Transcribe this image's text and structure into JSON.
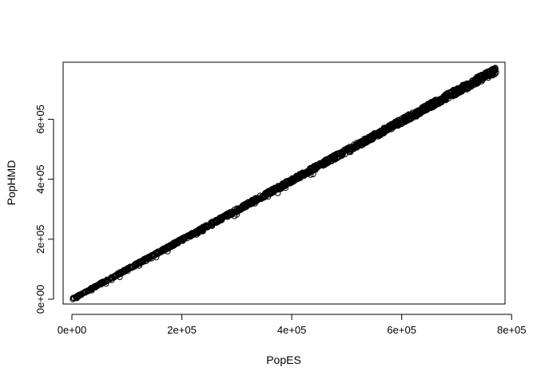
{
  "chart_data": {
    "type": "scatter",
    "title": "",
    "xlabel": "PopES",
    "ylabel": "PopHMD",
    "xlim": [
      -16000,
      788000
    ],
    "ylim": [
      -16000,
      790000
    ],
    "x_ticks": [
      0,
      200000,
      400000,
      600000,
      800000
    ],
    "y_ticks": [
      0,
      200000,
      400000,
      600000
    ],
    "x_tick_labels": [
      "0e+00",
      "2e+05",
      "4e+05",
      "6e+05",
      "8e+05"
    ],
    "y_tick_labels": [
      "0e+00",
      "2e+05",
      "4e+05",
      "6e+05"
    ],
    "marker": "open-circle",
    "grid": false,
    "series": [
      {
        "x_range": [
          0,
          772000
        ],
        "y_range": [
          0,
          762000
        ],
        "slope": 0.99,
        "count": 1500,
        "color": "#000000"
      }
    ]
  }
}
